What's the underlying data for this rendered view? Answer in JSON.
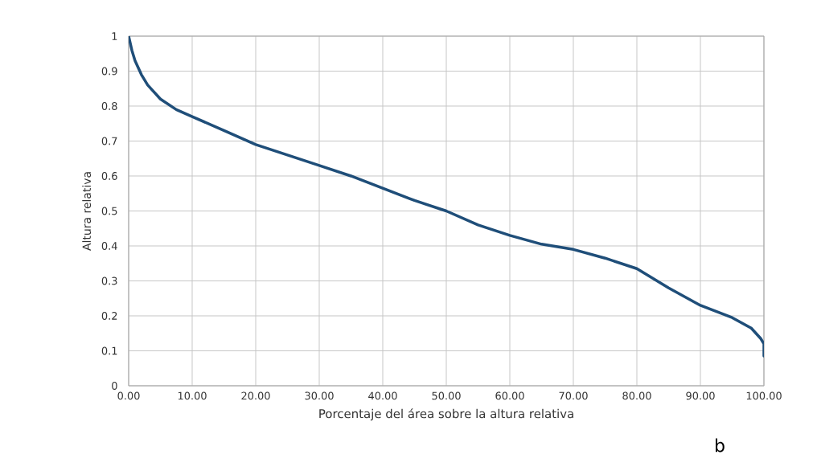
{
  "chart_data": {
    "type": "line",
    "xlabel": "Porcentaje del área sobre la altura relativa",
    "ylabel": "Altura relativa",
    "annotations": [
      "b"
    ],
    "series": [
      {
        "color": "#1f4e79",
        "x": [
          0,
          0.5,
          1,
          2,
          3,
          5,
          7.5,
          10,
          15,
          20,
          25,
          30,
          35,
          40,
          45,
          50,
          55,
          60,
          65,
          70,
          75,
          80,
          85,
          90,
          95,
          98,
          99.5,
          100,
          100
        ],
        "values": [
          1.0,
          0.96,
          0.93,
          0.89,
          0.86,
          0.82,
          0.79,
          0.77,
          0.73,
          0.69,
          0.66,
          0.63,
          0.6,
          0.565,
          0.53,
          0.5,
          0.46,
          0.43,
          0.405,
          0.39,
          0.365,
          0.335,
          0.28,
          0.23,
          0.195,
          0.165,
          0.135,
          0.12,
          0.085
        ]
      }
    ],
    "xlim": [
      0,
      100
    ],
    "ylim": [
      0,
      1
    ],
    "xticks": [
      {
        "value": 0,
        "label": "0.00"
      },
      {
        "value": 10,
        "label": "10.00"
      },
      {
        "value": 20,
        "label": "20.00"
      },
      {
        "value": 30,
        "label": "30.00"
      },
      {
        "value": 40,
        "label": "40.00"
      },
      {
        "value": 50,
        "label": "50.00"
      },
      {
        "value": 60,
        "label": "60.00"
      },
      {
        "value": 70,
        "label": "70.00"
      },
      {
        "value": 80,
        "label": "80.00"
      },
      {
        "value": 90,
        "label": "90.00"
      },
      {
        "value": 100,
        "label": "100.00"
      }
    ],
    "yticks": [
      0,
      0.1,
      0.2,
      0.3,
      0.4,
      0.5,
      0.6,
      0.7,
      0.8,
      0.9,
      1
    ],
    "grid": true,
    "marker": "none",
    "line_style": "solid"
  }
}
